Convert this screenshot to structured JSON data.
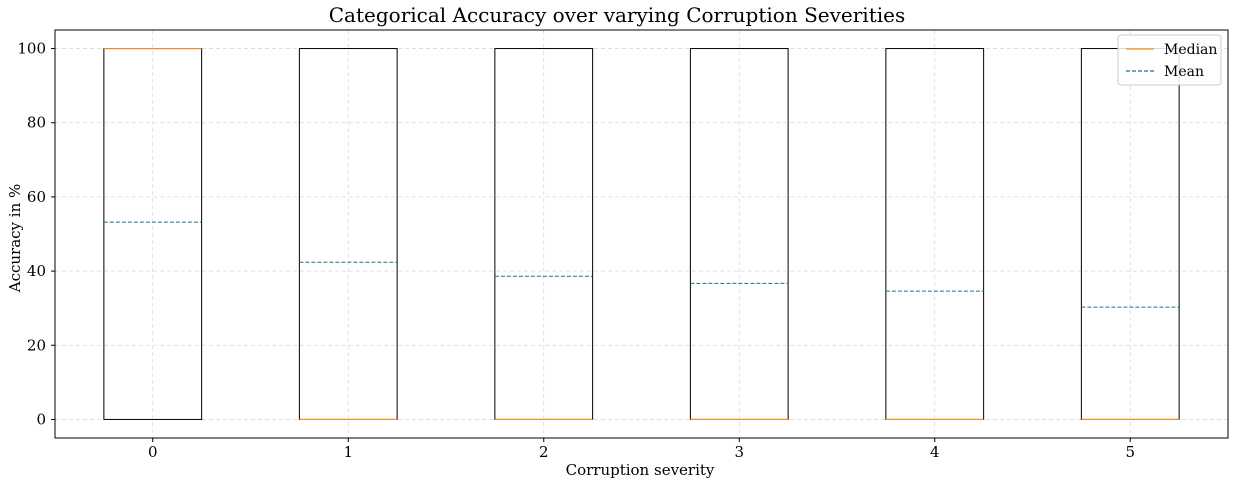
{
  "chart_data": {
    "type": "boxplot",
    "title": "Categorical Accuracy over varying Corruption Severities",
    "xlabel": "Corruption severity",
    "ylabel": "Accuracy in %",
    "categories": [
      "0",
      "1",
      "2",
      "3",
      "4",
      "5"
    ],
    "ylim": [
      -5,
      105
    ],
    "yticks": [
      0,
      20,
      40,
      60,
      80,
      100
    ],
    "grid": true,
    "legend_position": "top-right",
    "boxes": [
      {
        "category": "0",
        "q1": 0,
        "q3": 100,
        "median": 100,
        "mean": 53.2
      },
      {
        "category": "1",
        "q1": 0,
        "q3": 100,
        "median": 0,
        "mean": 42.4
      },
      {
        "category": "2",
        "q1": 0,
        "q3": 100,
        "median": 0,
        "mean": 38.6
      },
      {
        "category": "3",
        "q1": 0,
        "q3": 100,
        "median": 0,
        "mean": 36.7
      },
      {
        "category": "4",
        "q1": 0,
        "q3": 100,
        "median": 0,
        "mean": 34.6
      },
      {
        "category": "5",
        "q1": 0,
        "q3": 100,
        "median": 0,
        "mean": 30.3
      }
    ],
    "legend": [
      {
        "label": "Median",
        "style": "solid",
        "color": "#f28e1c"
      },
      {
        "label": "Mean",
        "style": "dashed",
        "color": "#1f6f8b"
      }
    ],
    "colors": {
      "box": "#000000",
      "median": "#f28e1c",
      "mean": "#1f6f8b",
      "grid": "#d9d9d9"
    }
  }
}
